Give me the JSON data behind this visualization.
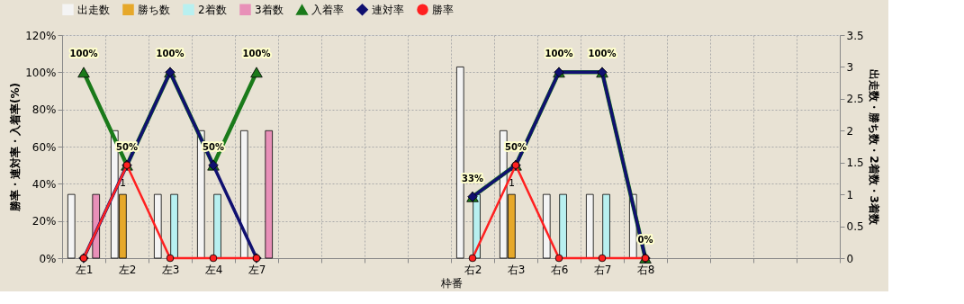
{
  "chart_data": {
    "type": "bar",
    "categories": [
      "左1",
      "左2",
      "左3",
      "左4",
      "左7",
      null,
      null,
      null,
      null,
      "右2",
      "右3",
      "右6",
      "右7",
      "右8",
      null,
      null,
      null,
      null
    ],
    "xlabel": "枠番",
    "ylabel": "勝率・連対率・入着率(%)",
    "y2label": "出走数・勝ち数・2着数・3着数",
    "series": [
      {
        "name": "出走数",
        "axis": "y2",
        "color": "#f4f4f4",
        "values": [
          1,
          2,
          1,
          2,
          2,
          null,
          null,
          null,
          null,
          3,
          2,
          1,
          1,
          1,
          null,
          null,
          null,
          null
        ]
      },
      {
        "name": "勝ち数",
        "axis": "y2",
        "color": "#e6a82a",
        "values": [
          0,
          1,
          0,
          0,
          0,
          null,
          null,
          null,
          null,
          0,
          1,
          0,
          0,
          0,
          null,
          null,
          null,
          null
        ],
        "value_labels": [
          null,
          "1",
          null,
          null,
          null,
          null,
          null,
          null,
          null,
          null,
          "1",
          null,
          null,
          null,
          null,
          null,
          null,
          null
        ]
      },
      {
        "name": "2着数",
        "axis": "y2",
        "color": "#b8f0f0",
        "values": [
          0,
          0,
          1,
          1,
          0,
          null,
          null,
          null,
          null,
          1,
          0,
          1,
          1,
          0,
          null,
          null,
          null,
          null
        ]
      },
      {
        "name": "3着数",
        "axis": "y2",
        "color": "#e890b8",
        "values": [
          1,
          0,
          0,
          0,
          2,
          null,
          null,
          null,
          null,
          0,
          0,
          0,
          0,
          0,
          null,
          null,
          null,
          null
        ]
      },
      {
        "name": "入着率",
        "type": "line",
        "marker": "triangle",
        "color": "#1a7a1a",
        "values": [
          100,
          50,
          100,
          50,
          100,
          null,
          null,
          null,
          null,
          33,
          50,
          100,
          100,
          0,
          null,
          null,
          null,
          null
        ],
        "value_labels": [
          "100%",
          "50%",
          "100%",
          "50%",
          "100%",
          null,
          null,
          null,
          null,
          "33%",
          "50%",
          "100%",
          "100%",
          "0%",
          null,
          null,
          null,
          null
        ]
      },
      {
        "name": "連対率",
        "type": "line",
        "marker": "diamond",
        "color": "#101070",
        "values": [
          0,
          50,
          100,
          50,
          0,
          null,
          null,
          null,
          null,
          33,
          50,
          100,
          100,
          0,
          null,
          null,
          null,
          null
        ]
      },
      {
        "name": "勝率",
        "type": "line",
        "marker": "circle",
        "color": "#ff2020",
        "values": [
          0,
          50,
          0,
          0,
          0,
          null,
          null,
          null,
          null,
          0,
          50,
          0,
          0,
          0,
          null,
          null,
          null,
          null
        ]
      }
    ],
    "ylim": [
      0,
      120
    ],
    "yticks": [
      {
        "value": 0,
        "label": "0%"
      },
      {
        "value": 20,
        "label": "20%"
      },
      {
        "value": 40,
        "label": "40%"
      },
      {
        "value": 60,
        "label": "60%"
      },
      {
        "value": 80,
        "label": "80%"
      },
      {
        "value": 100,
        "label": "100%"
      },
      {
        "value": 120,
        "label": "120%"
      }
    ],
    "y2lim": [
      0,
      3.5
    ],
    "y2ticks": [
      0,
      0.5,
      1,
      1.5,
      2,
      2.5,
      3,
      3.5
    ],
    "grid": true,
    "legend": "top"
  }
}
